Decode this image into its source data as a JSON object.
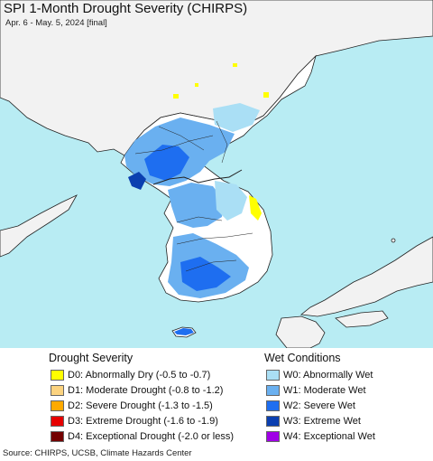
{
  "title": "SPI 1-Month Drought Severity (CHIRPS)",
  "subtitle": "Apr. 6 - May. 5, 2024 [final]",
  "colors": {
    "sea": "#b8ecf3",
    "land": "#ffffff",
    "foreign_land": "#f2f2f2",
    "border": "#222222"
  },
  "drought": {
    "heading": "Drought Severity",
    "items": [
      {
        "code": "D0",
        "label": "D0: Abnormally Dry (-0.5 to -0.7)",
        "color": "#ffff00"
      },
      {
        "code": "D1",
        "label": "D1: Moderate Drought (-0.8 to -1.2)",
        "color": "#fcd37f"
      },
      {
        "code": "D2",
        "label": "D2: Severe Drought (-1.3 to -1.5)",
        "color": "#ffaa00"
      },
      {
        "code": "D3",
        "label": "D3: Extreme Drought (-1.6 to -1.9)",
        "color": "#e60000"
      },
      {
        "code": "D4",
        "label": "D4: Exceptional Drought (-2.0 or less)",
        "color": "#730000"
      }
    ]
  },
  "wet": {
    "heading": "Wet Conditions",
    "items": [
      {
        "code": "W0",
        "label": "W0: Abnormally Wet",
        "color": "#aadff5"
      },
      {
        "code": "W1",
        "label": "W1: Moderate Wet",
        "color": "#6ab0f0"
      },
      {
        "code": "W2",
        "label": "W2: Severe Wet",
        "color": "#1e6ef0"
      },
      {
        "code": "W3",
        "label": "W3: Extreme Wet",
        "color": "#0b3fb0"
      },
      {
        "code": "W4",
        "label": "W4: Exceptional Wet",
        "color": "#a000e6"
      }
    ]
  },
  "source": "Source: CHIRPS, UCSB, Climate Hazards Center"
}
